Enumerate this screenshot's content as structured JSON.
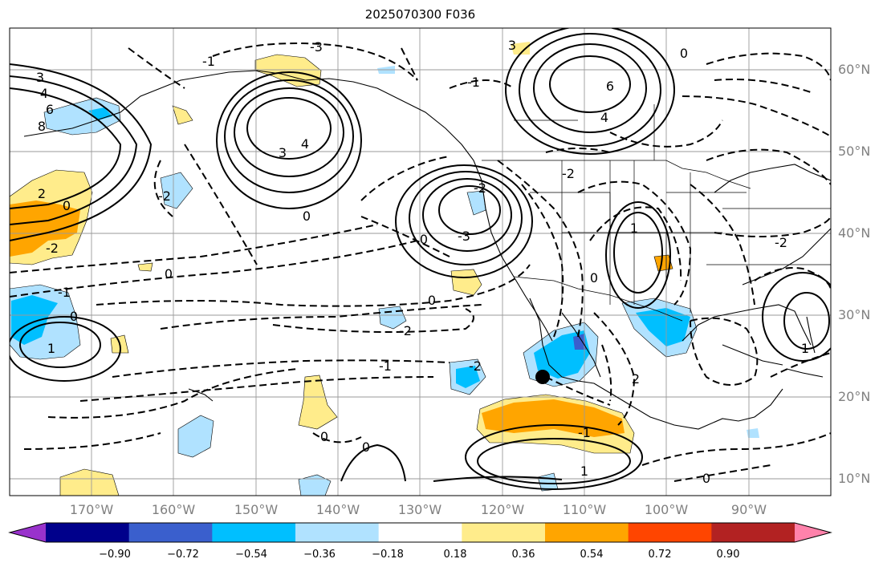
{
  "title": "2025070300 F036",
  "latitude_labels": [
    "60°N",
    "50°N",
    "40°N",
    "30°N",
    "20°N",
    "10°N"
  ],
  "longitude_labels": [
    "170°W",
    "160°W",
    "150°W",
    "140°W",
    "130°W",
    "120°W",
    "110°W",
    "100°W",
    "90°W"
  ],
  "contour_labels": [
    "3",
    "4",
    "6",
    "8",
    "2",
    "0",
    "-2",
    "-1",
    "1",
    "-3",
    "3",
    "4",
    "0",
    "0",
    "-2",
    "-1",
    "0",
    "-2",
    "-1",
    "0",
    "1",
    "6",
    "4",
    "-2",
    "0",
    "0",
    "-3",
    "-2",
    "3",
    "-2",
    "0",
    "-1",
    "1",
    "-2",
    "0",
    "2",
    "1",
    "0",
    "-1",
    "0"
  ],
  "colorbar": {
    "tick_labels": [
      "−0.90",
      "−0.72",
      "−0.54",
      "−0.36",
      "−0.18",
      "0.18",
      "0.36",
      "0.54",
      "0.72",
      "0.90"
    ],
    "colors": [
      "#9932cc",
      "#00008b",
      "#3a5fcd",
      "#00bfff",
      "#b0e2ff",
      "#ffffff",
      "#ffec8b",
      "#ffa500",
      "#ff4500",
      "#b22222",
      "#ff82ab"
    ]
  },
  "marker": "black-dot"
}
